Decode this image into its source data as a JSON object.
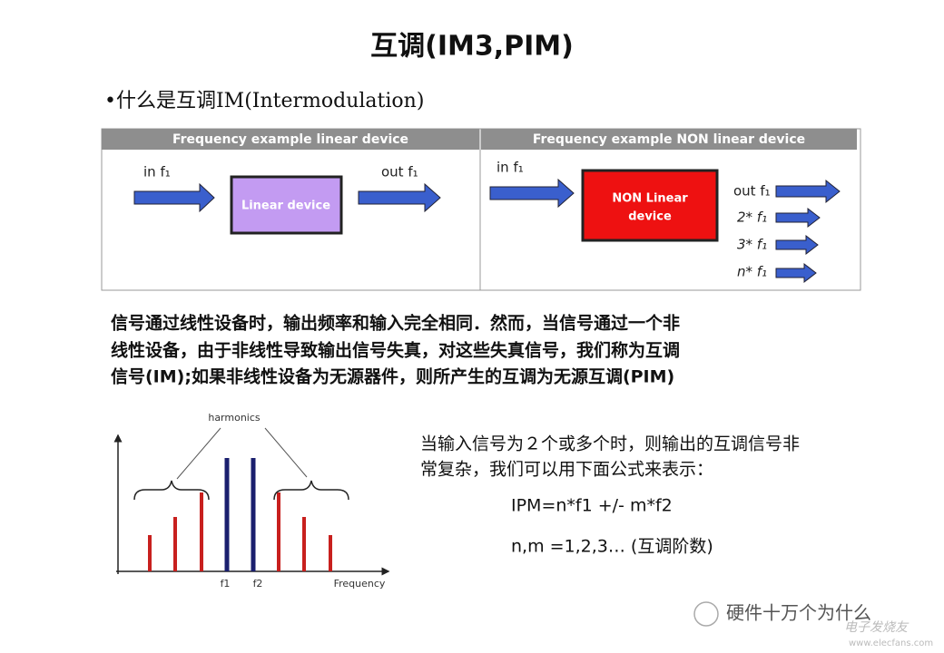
{
  "header": {
    "title": "互调(IM3,PIM)",
    "bullet": "•什么是互调IM(Intermodulation)"
  },
  "figure": {
    "left": {
      "header": "Frequency example linear device",
      "input": "in f₁",
      "device": "Linear device",
      "output": "out f₁"
    },
    "right": {
      "header": "Frequency example NON linear device",
      "input": "in f₁",
      "device_line1": "NON Linear",
      "device_line2": "device",
      "outputs": [
        "out f₁",
        "2* f₁",
        "3* f₁",
        "n* f₁"
      ]
    }
  },
  "paragraph": [
    "信号通过线性设备时，输出频率和输入完全相同．然而，当信号通过一个非",
    "线性设备，由于非线性导致输出信号失真，对这些失真信号，我们称为互调",
    "信号(IM);如果非线性设备为无源器件，则所产生的互调为无源互调(PIM)"
  ],
  "spectrum": {
    "harmonics": "harmonics",
    "f1": "f1",
    "f2": "f2",
    "axis": "Frequency"
  },
  "description": [
    "当输入信号为２个或多个时，则输出的互调信号非",
    "常复杂，我们可以用下面公式来表示："
  ],
  "formula": "IPM=n*f1 +/- m*f2",
  "formula_note": "n,m =1,2,3… (互调阶数)",
  "watermark": {
    "account": "硬件十万个为什么",
    "site_name": "电子发烧友",
    "url": "www.elecfans.com"
  }
}
